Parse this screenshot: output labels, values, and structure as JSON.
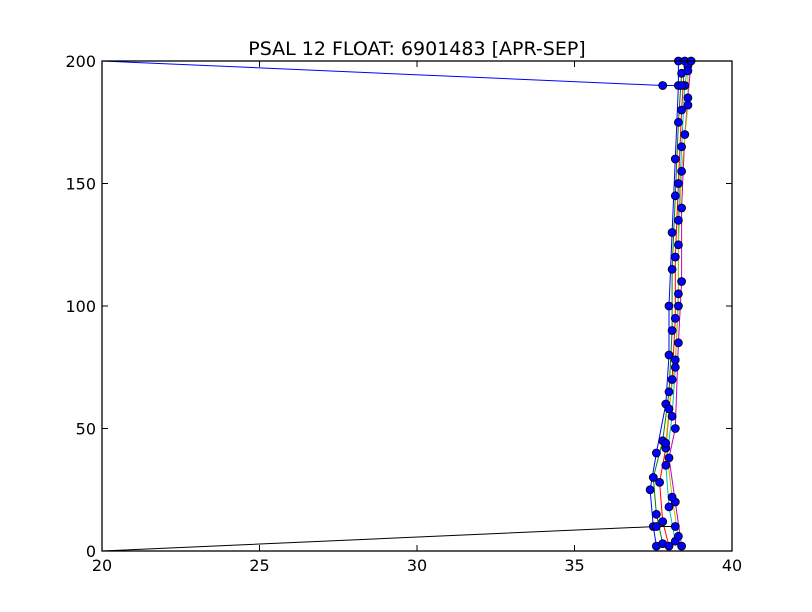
{
  "chart_data": {
    "type": "scatter",
    "title": "PSAL 12 FLOAT: 6901483 [APR-SEP]",
    "xlabel": "",
    "ylabel": "",
    "xlim": [
      20,
      40
    ],
    "ylim": [
      0,
      200
    ],
    "xticks": [
      "20",
      "25",
      "30",
      "35",
      "40"
    ],
    "yticks": [
      "0",
      "50",
      "100",
      "150",
      "200"
    ],
    "grid": false,
    "legend": "none",
    "marker_color": "#0000ff",
    "line_colors": [
      "#0000ff",
      "#008000",
      "#ff0000",
      "#00bfbf",
      "#bf00bf",
      "#bfbf00",
      "#000000"
    ],
    "series": [
      {
        "values": [
          [
            37.6,
            2
          ],
          [
            37.5,
            10
          ],
          [
            37.4,
            25
          ],
          [
            37.6,
            40
          ],
          [
            37.9,
            60
          ],
          [
            38.0,
            80
          ],
          [
            38.0,
            100
          ],
          [
            38.1,
            130
          ],
          [
            38.2,
            160
          ],
          [
            38.3,
            190
          ],
          [
            38.3,
            200
          ]
        ]
      },
      {
        "values": [
          [
            37.8,
            3
          ],
          [
            37.6,
            15
          ],
          [
            37.5,
            30
          ],
          [
            37.8,
            45
          ],
          [
            38.0,
            65
          ],
          [
            38.1,
            90
          ],
          [
            38.1,
            115
          ],
          [
            38.2,
            145
          ],
          [
            38.3,
            175
          ],
          [
            38.4,
            195
          ]
        ]
      },
      {
        "values": [
          [
            38.0,
            2
          ],
          [
            37.8,
            12
          ],
          [
            37.7,
            28
          ],
          [
            37.9,
            42
          ],
          [
            38.1,
            70
          ],
          [
            38.2,
            95
          ],
          [
            38.2,
            120
          ],
          [
            38.3,
            150
          ],
          [
            38.4,
            180
          ],
          [
            38.5,
            200
          ]
        ]
      },
      {
        "values": [
          [
            38.2,
            4
          ],
          [
            38.0,
            18
          ],
          [
            37.9,
            35
          ],
          [
            38.1,
            55
          ],
          [
            38.2,
            75
          ],
          [
            38.3,
            105
          ],
          [
            38.3,
            135
          ],
          [
            38.4,
            165
          ],
          [
            38.5,
            190
          ],
          [
            38.6,
            198
          ]
        ]
      },
      {
        "values": [
          [
            38.4,
            2
          ],
          [
            38.2,
            20
          ],
          [
            38.0,
            38
          ],
          [
            38.2,
            50
          ],
          [
            38.3,
            85
          ],
          [
            38.4,
            110
          ],
          [
            38.4,
            140
          ],
          [
            38.5,
            170
          ],
          [
            38.6,
            185
          ],
          [
            38.7,
            200
          ]
        ]
      },
      {
        "values": [
          [
            38.3,
            6
          ],
          [
            38.1,
            22
          ],
          [
            37.9,
            44
          ],
          [
            38.0,
            58
          ],
          [
            38.2,
            78
          ],
          [
            38.3,
            100
          ],
          [
            38.3,
            125
          ],
          [
            38.4,
            155
          ],
          [
            38.6,
            182
          ],
          [
            38.6,
            196
          ]
        ]
      },
      {
        "values": [
          [
            20.0,
            0
          ],
          [
            37.6,
            10
          ],
          [
            38.2,
            10
          ]
        ]
      },
      {
        "values": [
          [
            20.0,
            200
          ],
          [
            37.8,
            190
          ],
          [
            38.4,
            190
          ]
        ]
      }
    ]
  }
}
